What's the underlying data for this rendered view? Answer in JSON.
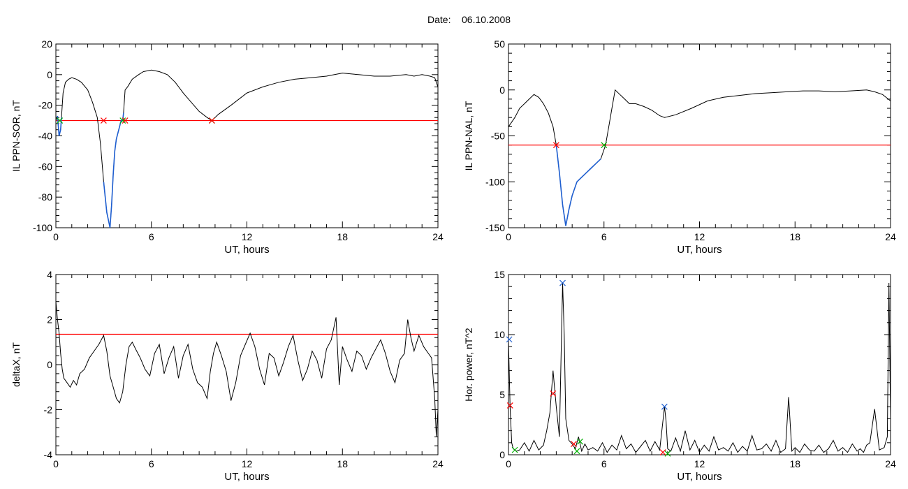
{
  "header": {
    "date_label": "Date:",
    "date_value": "06.10.2008"
  },
  "colors": {
    "trace": "#000000",
    "threshold": "#ff0000",
    "event": "#1f5fd0",
    "start_marker": "#ff0000",
    "end_marker": "#00b000",
    "peak_marker": "#1f5fd0"
  },
  "chart_data": [
    {
      "type": "line",
      "title": "",
      "xlabel": "UT, hours",
      "ylabel": "IL PPN-SOR, nT",
      "xlim": [
        0,
        24
      ],
      "ylim": [
        -100,
        20
      ],
      "xticks": [
        0,
        6,
        12,
        18,
        24
      ],
      "yticks": [
        -100,
        -80,
        -60,
        -40,
        -20,
        0,
        20
      ],
      "threshold": -30,
      "series": [
        {
          "x": [
            0,
            0.1,
            0.2,
            0.3,
            0.35,
            0.45,
            0.6,
            0.8,
            1.0,
            1.3,
            1.6,
            2.0,
            2.3,
            2.6,
            2.8,
            3.0,
            3.2,
            3.4,
            3.5,
            3.6,
            3.7,
            3.8,
            3.9,
            4.0,
            4.1,
            4.2,
            4.25,
            4.35,
            4.5,
            4.8,
            5.2,
            5.5,
            6.0,
            6.5,
            7.0,
            7.5,
            8.0,
            8.5,
            9.0,
            9.5,
            9.8,
            10.2,
            11.0,
            12.0,
            13.0,
            14.0,
            15.0,
            16.0,
            17.0,
            17.5,
            18.0,
            19.0,
            20.0,
            21.0,
            22.0,
            22.5,
            23.0,
            23.5,
            23.8,
            24.0
          ],
          "y": [
            -30,
            -27,
            -40,
            -36,
            -28,
            -12,
            -5,
            -3,
            -2,
            -3,
            -5,
            -10,
            -18,
            -28,
            -45,
            -70,
            -90,
            -100,
            -85,
            -65,
            -50,
            -42,
            -38,
            -34,
            -30,
            -30,
            -25,
            -10,
            -8,
            -3,
            0,
            2,
            3,
            2,
            0,
            -5,
            -12,
            -18,
            -24,
            -28,
            -30,
            -26,
            -20,
            -12,
            -8,
            -5,
            -3,
            -2,
            -1,
            0,
            1,
            0,
            -1,
            -1,
            0,
            -1,
            0,
            -1,
            -2,
            -8
          ]
        }
      ],
      "event_segments": [
        {
          "from": 3.0,
          "to": 4.3
        },
        {
          "from": 0.1,
          "to": 0.35
        }
      ],
      "markers": [
        {
          "kind": "start",
          "x": 3.0,
          "y": -30
        },
        {
          "kind": "end",
          "x": 4.2,
          "y": -30
        },
        {
          "kind": "start",
          "x": 4.35,
          "y": -30
        },
        {
          "kind": "end",
          "x": 0.25,
          "y": -30
        },
        {
          "kind": "end",
          "x": 9.8,
          "y": -30
        },
        {
          "kind": "start",
          "x": 9.8,
          "y": -30
        }
      ]
    },
    {
      "type": "line",
      "title": "",
      "xlabel": "UT, hours",
      "ylabel": "IL PPN-NAL, nT",
      "xlim": [
        0,
        24
      ],
      "ylim": [
        -150,
        50
      ],
      "xticks": [
        0,
        6,
        12,
        18,
        24
      ],
      "yticks": [
        -150,
        -100,
        -50,
        0,
        50
      ],
      "threshold": -60,
      "series": [
        {
          "x": [
            0,
            0.2,
            0.4,
            0.7,
            1.0,
            1.3,
            1.6,
            1.9,
            2.2,
            2.5,
            2.8,
            3.0,
            3.2,
            3.4,
            3.6,
            3.8,
            4.0,
            4.3,
            4.6,
            4.9,
            5.2,
            5.5,
            5.8,
            6.1,
            6.3,
            6.5,
            6.7,
            7.0,
            7.3,
            7.6,
            8.0,
            8.5,
            9.0,
            9.5,
            9.8,
            10.5,
            11.5,
            12.5,
            13.5,
            14.5,
            15.5,
            16.5,
            17.5,
            18.5,
            19.5,
            20.5,
            21.5,
            22.5,
            23.0,
            23.5,
            24.0
          ],
          "y": [
            -40,
            -35,
            -30,
            -20,
            -15,
            -10,
            -5,
            -8,
            -15,
            -25,
            -40,
            -60,
            -90,
            -125,
            -148,
            -130,
            -115,
            -100,
            -95,
            -90,
            -85,
            -80,
            -75,
            -60,
            -40,
            -20,
            0,
            -5,
            -10,
            -15,
            -15,
            -18,
            -22,
            -28,
            -30,
            -27,
            -20,
            -12,
            -8,
            -6,
            -4,
            -3,
            -2,
            -1,
            -1,
            -2,
            -1,
            0,
            -2,
            -5,
            -12
          ]
        }
      ],
      "event_segments": [
        {
          "from": 3.0,
          "to": 6.0
        }
      ],
      "markers": [
        {
          "kind": "start",
          "x": 3.0,
          "y": -60
        },
        {
          "kind": "end",
          "x": 6.0,
          "y": -60
        }
      ]
    },
    {
      "type": "line",
      "title": "",
      "xlabel": "UT, hours",
      "ylabel": "deltaX, nT",
      "xlim": [
        0,
        24
      ],
      "ylim": [
        -4,
        4
      ],
      "xticks": [
        0,
        6,
        12,
        18,
        24
      ],
      "yticks": [
        -4,
        -2,
        0,
        2,
        4
      ],
      "threshold": 1.35,
      "series": [
        {
          "x": [
            0,
            0.1,
            0.2,
            0.3,
            0.4,
            0.5,
            0.7,
            0.9,
            1.1,
            1.3,
            1.5,
            1.8,
            2.1,
            2.4,
            2.7,
            3.0,
            3.2,
            3.4,
            3.6,
            3.8,
            4.0,
            4.2,
            4.4,
            4.6,
            4.8,
            5.0,
            5.3,
            5.6,
            5.9,
            6.2,
            6.5,
            6.8,
            7.1,
            7.4,
            7.7,
            8.0,
            8.3,
            8.6,
            8.9,
            9.2,
            9.5,
            9.7,
            9.9,
            10.1,
            10.4,
            10.7,
            11.0,
            11.3,
            11.6,
            11.9,
            12.2,
            12.5,
            12.8,
            13.1,
            13.4,
            13.7,
            14.0,
            14.3,
            14.6,
            14.9,
            15.2,
            15.5,
            15.8,
            16.1,
            16.4,
            16.7,
            17.0,
            17.3,
            17.6,
            17.8,
            18.0,
            18.3,
            18.6,
            18.9,
            19.2,
            19.5,
            19.8,
            20.1,
            20.4,
            20.7,
            21.0,
            21.3,
            21.6,
            21.9,
            22.1,
            22.3,
            22.5,
            22.8,
            23.1,
            23.4,
            23.6,
            23.8,
            23.9,
            24.0
          ],
          "y": [
            2.8,
            2.0,
            1.4,
            0.5,
            -0.2,
            -0.6,
            -0.8,
            -1.0,
            -0.7,
            -0.9,
            -0.4,
            -0.2,
            0.3,
            0.6,
            0.9,
            1.3,
            0.6,
            -0.5,
            -1.0,
            -1.5,
            -1.7,
            -1.2,
            0.0,
            0.8,
            1.0,
            0.7,
            0.3,
            -0.2,
            -0.5,
            0.5,
            0.9,
            -0.4,
            0.3,
            0.8,
            -0.6,
            0.4,
            0.9,
            -0.2,
            -0.8,
            -1.0,
            -1.5,
            -0.3,
            0.5,
            1.0,
            0.4,
            -0.3,
            -1.6,
            -0.8,
            0.4,
            0.9,
            1.4,
            0.8,
            -0.2,
            -0.9,
            0.5,
            0.3,
            -0.5,
            0.1,
            0.8,
            1.3,
            0.2,
            -0.7,
            -0.2,
            0.6,
            0.2,
            -0.6,
            0.7,
            1.1,
            2.1,
            -0.9,
            0.8,
            0.2,
            -0.3,
            0.6,
            0.4,
            -0.2,
            0.3,
            0.7,
            1.1,
            0.5,
            -0.3,
            -0.8,
            0.2,
            0.5,
            2.0,
            1.2,
            0.6,
            1.3,
            0.8,
            0.5,
            0.3,
            -1.5,
            -3.2,
            -2.0
          ]
        }
      ],
      "event_segments": [],
      "markers": []
    },
    {
      "type": "line",
      "title": "",
      "xlabel": "UT, hours",
      "ylabel": "Hor. power, nT^2",
      "xlim": [
        0,
        24
      ],
      "ylim": [
        0,
        15
      ],
      "xticks": [
        0,
        6,
        12,
        18,
        24
      ],
      "yticks": [
        0,
        5,
        10,
        15
      ],
      "threshold": null,
      "series": [
        {
          "x": [
            0,
            0.1,
            0.2,
            0.3,
            0.5,
            0.7,
            1.0,
            1.3,
            1.6,
            1.9,
            2.2,
            2.4,
            2.6,
            2.8,
            3.0,
            3.2,
            3.4,
            3.5,
            3.6,
            3.8,
            4.0,
            4.2,
            4.4,
            4.6,
            4.8,
            5.0,
            5.3,
            5.6,
            5.9,
            6.2,
            6.5,
            6.8,
            7.1,
            7.4,
            7.7,
            8.0,
            8.3,
            8.6,
            8.9,
            9.2,
            9.5,
            9.8,
            9.9,
            10.0,
            10.2,
            10.5,
            10.8,
            11.1,
            11.4,
            11.7,
            12.0,
            12.3,
            12.6,
            12.9,
            13.2,
            13.5,
            13.8,
            14.1,
            14.4,
            14.7,
            15.0,
            15.3,
            15.6,
            15.9,
            16.2,
            16.5,
            16.8,
            17.1,
            17.4,
            17.6,
            17.8,
            18.0,
            18.3,
            18.6,
            18.9,
            19.2,
            19.5,
            19.8,
            20.1,
            20.4,
            20.7,
            21.0,
            21.3,
            21.6,
            21.9,
            22.1,
            22.3,
            22.5,
            22.7,
            23.0,
            23.3,
            23.6,
            23.8,
            23.9,
            24.0
          ],
          "y": [
            9.5,
            4.0,
            1.0,
            0.5,
            0.3,
            0.4,
            1.0,
            0.3,
            1.2,
            0.4,
            0.8,
            2.0,
            3.5,
            7.0,
            4.0,
            1.5,
            14.3,
            10.0,
            3.0,
            1.2,
            0.9,
            0.5,
            1.5,
            0.3,
            0.9,
            0.4,
            0.6,
            0.3,
            1.0,
            0.2,
            0.8,
            0.4,
            1.6,
            0.5,
            0.9,
            0.2,
            0.7,
            1.2,
            0.3,
            1.1,
            0.4,
            4.0,
            2.8,
            0.5,
            0.3,
            1.4,
            0.3,
            2.0,
            0.4,
            1.2,
            0.2,
            0.8,
            0.3,
            1.5,
            0.4,
            0.6,
            0.3,
            1.0,
            0.2,
            0.7,
            0.3,
            1.6,
            0.4,
            0.5,
            0.9,
            0.3,
            1.2,
            0.2,
            0.5,
            4.8,
            0.3,
            0.6,
            0.2,
            0.9,
            0.4,
            0.3,
            0.8,
            0.2,
            0.5,
            1.2,
            0.3,
            0.6,
            0.2,
            0.9,
            0.3,
            0.5,
            0.2,
            0.8,
            1.0,
            3.8,
            0.4,
            0.6,
            1.5,
            14.3,
            3.0
          ]
        }
      ],
      "event_segments": [],
      "markers": [
        {
          "kind": "peak",
          "x": 0.05,
          "y": 9.6
        },
        {
          "kind": "start",
          "x": 0.1,
          "y": 4.1
        },
        {
          "kind": "end",
          "x": 0.4,
          "y": 0.4
        },
        {
          "kind": "start",
          "x": 2.8,
          "y": 5.1
        },
        {
          "kind": "peak",
          "x": 3.4,
          "y": 14.3
        },
        {
          "kind": "start",
          "x": 4.1,
          "y": 0.9
        },
        {
          "kind": "end",
          "x": 4.3,
          "y": 0.3
        },
        {
          "kind": "end",
          "x": 4.5,
          "y": 1.1
        },
        {
          "kind": "peak",
          "x": 9.8,
          "y": 4.0
        },
        {
          "kind": "start",
          "x": 9.7,
          "y": 0.2
        },
        {
          "kind": "end",
          "x": 10.0,
          "y": 0.1
        }
      ]
    }
  ]
}
